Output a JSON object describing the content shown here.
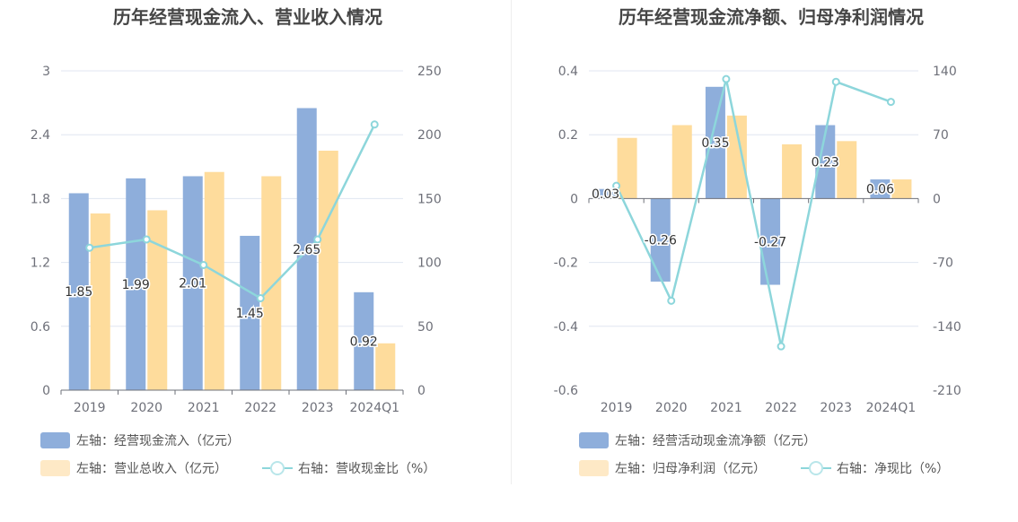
{
  "chart_data": [
    {
      "type": "bar",
      "title": "历年经营现金流入、营业收入情况",
      "categories": [
        "2019",
        "2020",
        "2021",
        "2022",
        "2023",
        "2024Q1"
      ],
      "y_left": {
        "min": 0,
        "max": 3,
        "ticks": [
          "0",
          "0.6",
          "1.2",
          "1.8",
          "2.4",
          "3"
        ]
      },
      "y_right": {
        "min": 0,
        "max": 250,
        "ticks": [
          "0",
          "50",
          "100",
          "150",
          "200",
          "250"
        ]
      },
      "series": [
        {
          "name": "左轴：经营现金流入（亿元）",
          "type": "bar",
          "axis": "left",
          "color": "#8eaedb",
          "values": [
            1.85,
            1.99,
            2.01,
            1.45,
            2.65,
            0.92
          ],
          "labels": [
            "1.85",
            "1.99",
            "2.01",
            "1.45",
            "2.65",
            "0.92"
          ]
        },
        {
          "name": "左轴：营业总收入（亿元）",
          "type": "bar",
          "axis": "left",
          "color": "#fedc9c",
          "values": [
            1.66,
            1.69,
            2.05,
            2.01,
            2.25,
            0.44
          ]
        },
        {
          "name": "右轴：营收现金比（%）",
          "type": "line",
          "axis": "right",
          "color": "#8dd6db",
          "values": [
            111.5,
            118,
            98,
            72,
            118,
            208
          ]
        }
      ]
    },
    {
      "type": "bar",
      "title": "历年经营现金流净额、归母净利润情况",
      "categories": [
        "2019",
        "2020",
        "2021",
        "2022",
        "2023",
        "2024Q1"
      ],
      "y_left": {
        "min": -0.6,
        "max": 0.4,
        "ticks": [
          "-0.6",
          "-0.4",
          "-0.2",
          "0",
          "0.2",
          "0.4"
        ]
      },
      "y_right": {
        "min": -210,
        "max": 140,
        "ticks": [
          "-210",
          "-140",
          "-70",
          "0",
          "70",
          "140"
        ]
      },
      "series": [
        {
          "name": "左轴：经营活动现金流净额（亿元）",
          "type": "bar",
          "axis": "left",
          "color": "#8eaedb",
          "values": [
            0.03,
            -0.26,
            0.35,
            -0.27,
            0.23,
            0.06
          ],
          "labels": [
            "0.03",
            "-0.26",
            "0.35",
            "-0.27",
            "0.23",
            "0.06"
          ]
        },
        {
          "name": "左轴：归母净利润（亿元）",
          "type": "bar",
          "axis": "left",
          "color": "#fedc9c",
          "values": [
            0.19,
            0.23,
            0.26,
            0.17,
            0.18,
            0.06
          ]
        },
        {
          "name": "右轴：净现比（%）",
          "type": "line",
          "axis": "right",
          "color": "#8dd6db",
          "values": [
            14,
            -112,
            131,
            -162,
            128,
            106
          ]
        }
      ]
    }
  ]
}
